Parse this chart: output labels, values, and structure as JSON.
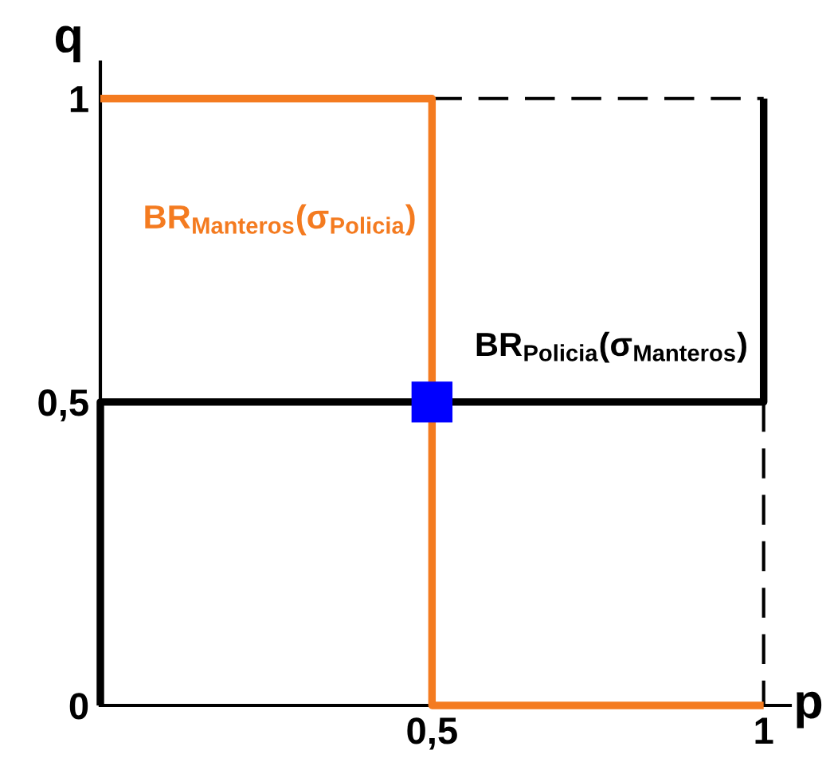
{
  "chart_data": {
    "type": "line",
    "xlabel": "p",
    "ylabel": "q",
    "xlim": [
      0,
      1.04
    ],
    "ylim": [
      0,
      1.06
    ],
    "xticks": [
      {
        "value": 0.5,
        "label": "0,5"
      },
      {
        "value": 1,
        "label": "1"
      }
    ],
    "yticks": [
      {
        "value": 0,
        "label": "0"
      },
      {
        "value": 0.5,
        "label": "0,5"
      },
      {
        "value": 1,
        "label": "1"
      }
    ],
    "series": [
      {
        "color": "#f47b20",
        "x": [
          0,
          0.5,
          0.5,
          1
        ],
        "values": [
          1,
          1,
          0,
          0
        ]
      },
      {
        "color": "#000000",
        "x": [
          0,
          0,
          1,
          1
        ],
        "values": [
          0,
          0.5,
          0.5,
          1
        ]
      },
      {
        "color": "#000000",
        "x": [
          0.5,
          1
        ],
        "values": [
          1,
          1
        ],
        "line_style": "dashed"
      },
      {
        "color": "#000000",
        "x": [
          1,
          1
        ],
        "values": [
          0.5,
          0
        ],
        "line_style": "dashed"
      },
      {
        "type": "scatter",
        "color": "#0000ff",
        "x": [
          0.5
        ],
        "values": [
          0.5
        ],
        "marker": "square"
      }
    ],
    "annotations": [
      {
        "text": "BR$_{Manteros}$(σ$_{Policia}$)",
        "x": 0.5,
        "y": 0.8
      },
      {
        "text": "BR$_{Policia}$(σ$_{Manteros}$)",
        "x": 1,
        "y": 0.59
      }
    ]
  }
}
